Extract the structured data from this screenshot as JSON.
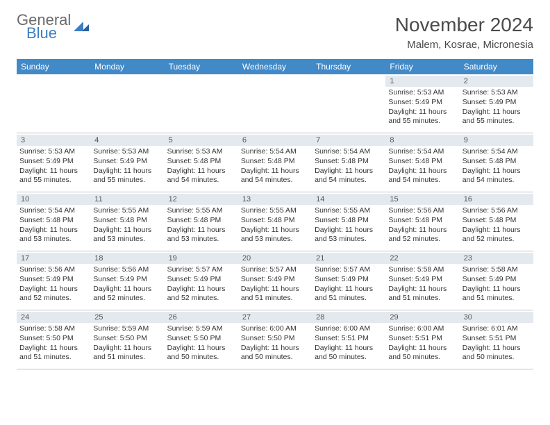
{
  "logo": {
    "word1": "General",
    "word2": "Blue"
  },
  "title": "November 2024",
  "location": "Malem, Kosrae, Micronesia",
  "colors": {
    "header_bg": "#4289c8",
    "header_text": "#ffffff",
    "daynum_bg": "#e4e9ef",
    "text": "#333333",
    "logo_gray": "#6b6b6b",
    "logo_blue": "#3a7fc4",
    "border": "#c0c0c0"
  },
  "day_labels": [
    "Sunday",
    "Monday",
    "Tuesday",
    "Wednesday",
    "Thursday",
    "Friday",
    "Saturday"
  ],
  "weeks": [
    [
      {
        "n": "",
        "t": ""
      },
      {
        "n": "",
        "t": ""
      },
      {
        "n": "",
        "t": ""
      },
      {
        "n": "",
        "t": ""
      },
      {
        "n": "",
        "t": ""
      },
      {
        "n": "1",
        "t": "Sunrise: 5:53 AM\nSunset: 5:49 PM\nDaylight: 11 hours and 55 minutes."
      },
      {
        "n": "2",
        "t": "Sunrise: 5:53 AM\nSunset: 5:49 PM\nDaylight: 11 hours and 55 minutes."
      }
    ],
    [
      {
        "n": "3",
        "t": "Sunrise: 5:53 AM\nSunset: 5:49 PM\nDaylight: 11 hours and 55 minutes."
      },
      {
        "n": "4",
        "t": "Sunrise: 5:53 AM\nSunset: 5:49 PM\nDaylight: 11 hours and 55 minutes."
      },
      {
        "n": "5",
        "t": "Sunrise: 5:53 AM\nSunset: 5:48 PM\nDaylight: 11 hours and 54 minutes."
      },
      {
        "n": "6",
        "t": "Sunrise: 5:54 AM\nSunset: 5:48 PM\nDaylight: 11 hours and 54 minutes."
      },
      {
        "n": "7",
        "t": "Sunrise: 5:54 AM\nSunset: 5:48 PM\nDaylight: 11 hours and 54 minutes."
      },
      {
        "n": "8",
        "t": "Sunrise: 5:54 AM\nSunset: 5:48 PM\nDaylight: 11 hours and 54 minutes."
      },
      {
        "n": "9",
        "t": "Sunrise: 5:54 AM\nSunset: 5:48 PM\nDaylight: 11 hours and 54 minutes."
      }
    ],
    [
      {
        "n": "10",
        "t": "Sunrise: 5:54 AM\nSunset: 5:48 PM\nDaylight: 11 hours and 53 minutes."
      },
      {
        "n": "11",
        "t": "Sunrise: 5:55 AM\nSunset: 5:48 PM\nDaylight: 11 hours and 53 minutes."
      },
      {
        "n": "12",
        "t": "Sunrise: 5:55 AM\nSunset: 5:48 PM\nDaylight: 11 hours and 53 minutes."
      },
      {
        "n": "13",
        "t": "Sunrise: 5:55 AM\nSunset: 5:48 PM\nDaylight: 11 hours and 53 minutes."
      },
      {
        "n": "14",
        "t": "Sunrise: 5:55 AM\nSunset: 5:48 PM\nDaylight: 11 hours and 53 minutes."
      },
      {
        "n": "15",
        "t": "Sunrise: 5:56 AM\nSunset: 5:48 PM\nDaylight: 11 hours and 52 minutes."
      },
      {
        "n": "16",
        "t": "Sunrise: 5:56 AM\nSunset: 5:48 PM\nDaylight: 11 hours and 52 minutes."
      }
    ],
    [
      {
        "n": "17",
        "t": "Sunrise: 5:56 AM\nSunset: 5:49 PM\nDaylight: 11 hours and 52 minutes."
      },
      {
        "n": "18",
        "t": "Sunrise: 5:56 AM\nSunset: 5:49 PM\nDaylight: 11 hours and 52 minutes."
      },
      {
        "n": "19",
        "t": "Sunrise: 5:57 AM\nSunset: 5:49 PM\nDaylight: 11 hours and 52 minutes."
      },
      {
        "n": "20",
        "t": "Sunrise: 5:57 AM\nSunset: 5:49 PM\nDaylight: 11 hours and 51 minutes."
      },
      {
        "n": "21",
        "t": "Sunrise: 5:57 AM\nSunset: 5:49 PM\nDaylight: 11 hours and 51 minutes."
      },
      {
        "n": "22",
        "t": "Sunrise: 5:58 AM\nSunset: 5:49 PM\nDaylight: 11 hours and 51 minutes."
      },
      {
        "n": "23",
        "t": "Sunrise: 5:58 AM\nSunset: 5:49 PM\nDaylight: 11 hours and 51 minutes."
      }
    ],
    [
      {
        "n": "24",
        "t": "Sunrise: 5:58 AM\nSunset: 5:50 PM\nDaylight: 11 hours and 51 minutes."
      },
      {
        "n": "25",
        "t": "Sunrise: 5:59 AM\nSunset: 5:50 PM\nDaylight: 11 hours and 51 minutes."
      },
      {
        "n": "26",
        "t": "Sunrise: 5:59 AM\nSunset: 5:50 PM\nDaylight: 11 hours and 50 minutes."
      },
      {
        "n": "27",
        "t": "Sunrise: 6:00 AM\nSunset: 5:50 PM\nDaylight: 11 hours and 50 minutes."
      },
      {
        "n": "28",
        "t": "Sunrise: 6:00 AM\nSunset: 5:51 PM\nDaylight: 11 hours and 50 minutes."
      },
      {
        "n": "29",
        "t": "Sunrise: 6:00 AM\nSunset: 5:51 PM\nDaylight: 11 hours and 50 minutes."
      },
      {
        "n": "30",
        "t": "Sunrise: 6:01 AM\nSunset: 5:51 PM\nDaylight: 11 hours and 50 minutes."
      }
    ]
  ]
}
